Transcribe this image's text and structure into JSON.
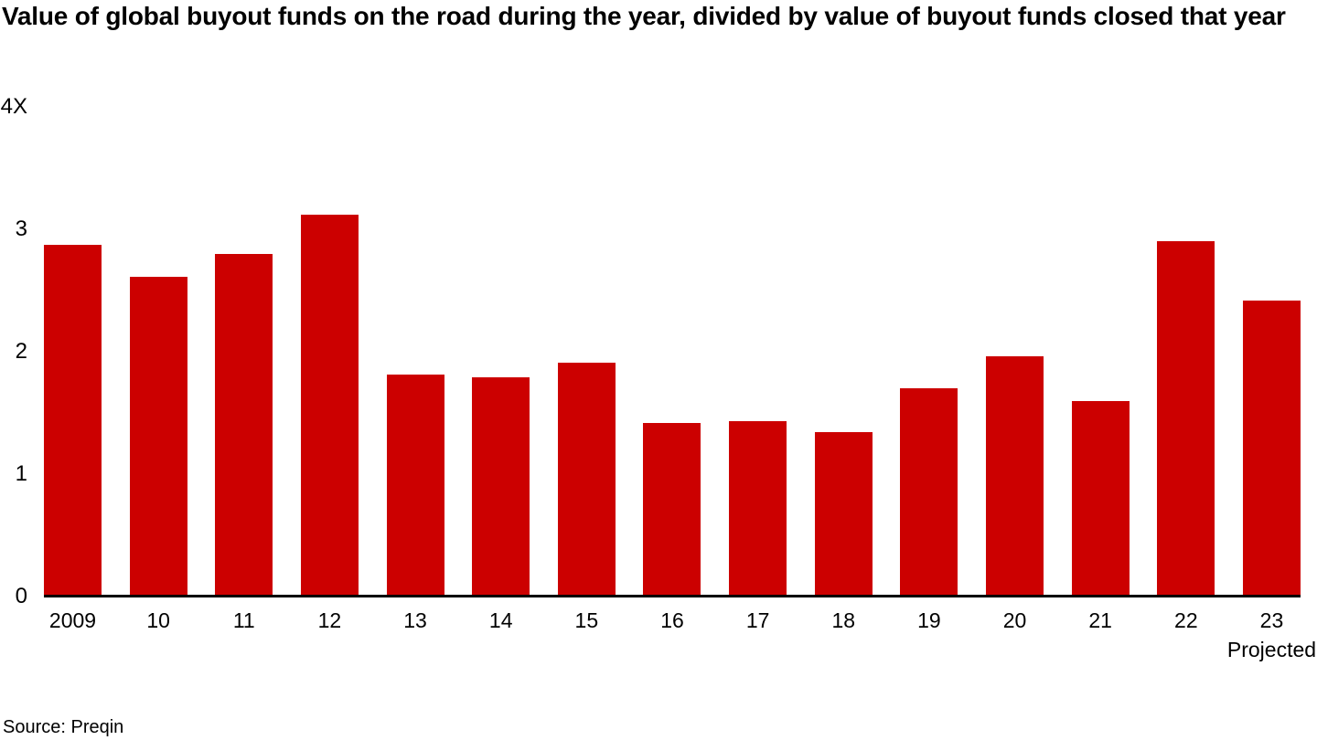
{
  "title": "Value of global buyout funds on the road during the year, divided by value of buyout funds closed that year",
  "source": "Source: Preqin",
  "chart_data": {
    "type": "bar",
    "title": "Value of global buyout funds on the road during the year, divided by value of buyout funds closed that year",
    "categories": [
      "2009",
      "10",
      "11",
      "12",
      "13",
      "14",
      "15",
      "16",
      "17",
      "18",
      "19",
      "20",
      "21",
      "22",
      "23"
    ],
    "values": [
      2.87,
      2.61,
      2.8,
      3.12,
      1.81,
      1.79,
      1.91,
      1.42,
      1.43,
      1.34,
      1.7,
      1.96,
      1.6,
      2.9,
      2.42
    ],
    "last_category_sublabel": "Projected",
    "xlabel": "",
    "ylabel": "",
    "ylim": [
      0,
      4
    ],
    "y_ticks": [
      {
        "value": 0,
        "label": "0"
      },
      {
        "value": 1,
        "label": "1"
      },
      {
        "value": 2,
        "label": "2"
      },
      {
        "value": 3,
        "label": "3"
      },
      {
        "value": 4,
        "label": "4X"
      }
    ],
    "grid": false,
    "legend": false,
    "bar_color": "#cc0000",
    "axis_color": "#000000",
    "text_color": "#000000"
  }
}
